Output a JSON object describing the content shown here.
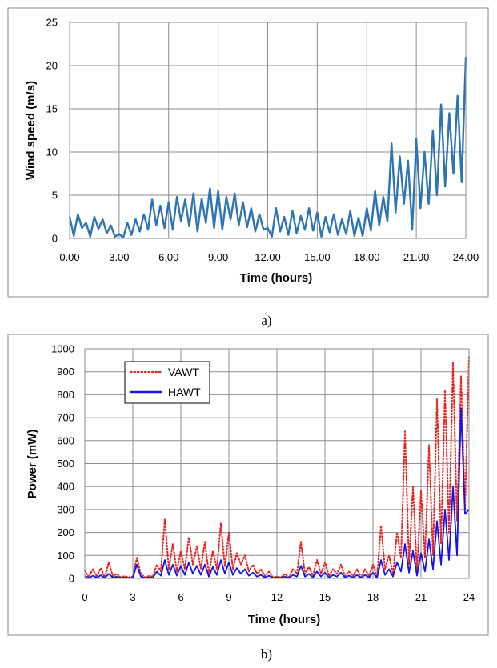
{
  "chart_data": [
    {
      "panel": "a)",
      "type": "line",
      "title": "",
      "xlabel": "Time (hours)",
      "ylabel": "Wind speed (m/s)",
      "xlim": [
        0,
        24
      ],
      "ylim": [
        0,
        25
      ],
      "xticks": [
        0,
        3,
        6,
        9,
        12,
        15,
        18,
        21,
        24
      ],
      "xtick_labels": [
        "0.00",
        "3.00",
        "6.00",
        "9.00",
        "12.00",
        "15.00",
        "18.00",
        "21.00",
        "24.00"
      ],
      "yticks": [
        0,
        5,
        10,
        15,
        20,
        25
      ],
      "ytick_labels": [
        "0",
        "5",
        "10",
        "15",
        "20",
        "25"
      ],
      "grid": true,
      "series": [
        {
          "name": "Wind speed",
          "color": "#2e74b5",
          "style": "solid",
          "x": [
            0,
            0.25,
            0.5,
            0.75,
            1,
            1.25,
            1.5,
            1.75,
            2,
            2.25,
            2.5,
            2.75,
            3,
            3.25,
            3.5,
            3.75,
            4,
            4.25,
            4.5,
            4.75,
            5,
            5.25,
            5.5,
            5.75,
            6,
            6.25,
            6.5,
            6.75,
            7,
            7.25,
            7.5,
            7.75,
            8,
            8.25,
            8.5,
            8.75,
            9,
            9.25,
            9.5,
            9.75,
            10,
            10.25,
            10.5,
            10.75,
            11,
            11.25,
            11.5,
            11.75,
            12,
            12.25,
            12.5,
            12.75,
            13,
            13.25,
            13.5,
            13.75,
            14,
            14.25,
            14.5,
            14.75,
            15,
            15.25,
            15.5,
            15.75,
            16,
            16.25,
            16.5,
            16.75,
            17,
            17.25,
            17.5,
            17.75,
            18,
            18.25,
            18.5,
            18.75,
            19,
            19.25,
            19.5,
            19.75,
            20,
            20.25,
            20.5,
            20.75,
            21,
            21.25,
            21.5,
            21.75,
            22,
            22.25,
            22.5,
            22.75,
            23,
            23.25,
            23.5,
            23.75,
            24
          ],
          "values": [
            2.5,
            0.3,
            2.8,
            1.2,
            1.8,
            0.2,
            2.5,
            1.1,
            2.2,
            0.6,
            1.5,
            0.2,
            0.5,
            0.1,
            1.8,
            0.4,
            2.2,
            0.8,
            2.8,
            1.0,
            4.5,
            1.5,
            3.8,
            1.2,
            4.2,
            1.0,
            4.8,
            2.0,
            4.5,
            1.4,
            5.2,
            0.8,
            4.6,
            1.8,
            5.8,
            1.2,
            5.5,
            1.0,
            4.8,
            2.2,
            5.2,
            1.5,
            4.2,
            1.3,
            3.5,
            0.8,
            2.8,
            1.0,
            1.2,
            0.2,
            3.5,
            0.8,
            2.5,
            0.4,
            3.2,
            0.6,
            2.6,
            1.0,
            3.5,
            0.9,
            3.0,
            0.2,
            2.5,
            0.7,
            2.8,
            0.4,
            2.2,
            0.5,
            3.2,
            0.3,
            2.4,
            0.3,
            3.5,
            0.9,
            5.5,
            1.5,
            4.8,
            2.0,
            11.0,
            3.0,
            9.5,
            4.0,
            9.0,
            1.0,
            11.5,
            3.5,
            10.0,
            4.0,
            12.5,
            5.0,
            15.5,
            6.0,
            14.5,
            7.5,
            16.5,
            6.5,
            21.0
          ]
        }
      ]
    },
    {
      "panel": "b)",
      "type": "line",
      "title": "",
      "xlabel": "Time (hours)",
      "ylabel": "Power (mW)",
      "xlim": [
        0,
        24
      ],
      "ylim": [
        0,
        1000
      ],
      "xticks": [
        0,
        3,
        6,
        9,
        12,
        15,
        18,
        21,
        24
      ],
      "xtick_labels": [
        "0",
        "3",
        "6",
        "9",
        "12",
        "15",
        "18",
        "21",
        "24"
      ],
      "yticks": [
        0,
        100,
        200,
        300,
        400,
        500,
        600,
        700,
        800,
        900,
        1000
      ],
      "ytick_labels": [
        "0",
        "100",
        "200",
        "300",
        "400",
        "500",
        "600",
        "700",
        "800",
        "900",
        "1000"
      ],
      "grid": true,
      "legend": {
        "position": "top-left"
      },
      "series": [
        {
          "name": "VAWT",
          "color": "#e8211e",
          "style": "dotted",
          "x": [
            0,
            0.25,
            0.5,
            0.75,
            1,
            1.25,
            1.5,
            1.75,
            2,
            2.25,
            2.5,
            2.75,
            3,
            3.25,
            3.5,
            3.75,
            4,
            4.25,
            4.5,
            4.75,
            5,
            5.25,
            5.5,
            5.75,
            6,
            6.25,
            6.5,
            6.75,
            7,
            7.25,
            7.5,
            7.75,
            8,
            8.25,
            8.5,
            8.75,
            9,
            9.25,
            9.5,
            9.75,
            10,
            10.25,
            10.5,
            10.75,
            11,
            11.25,
            11.5,
            11.75,
            12,
            12.25,
            12.5,
            12.75,
            13,
            13.25,
            13.5,
            13.75,
            14,
            14.25,
            14.5,
            14.75,
            15,
            15.25,
            15.5,
            15.75,
            16,
            16.25,
            16.5,
            16.75,
            17,
            17.25,
            17.5,
            17.75,
            18,
            18.25,
            18.5,
            18.75,
            19,
            19.25,
            19.5,
            19.75,
            20,
            20.25,
            20.5,
            20.75,
            21,
            21.25,
            21.5,
            21.75,
            22,
            22.25,
            22.5,
            22.75,
            23,
            23.25,
            23.5,
            23.75,
            24
          ],
          "values": [
            35,
            5,
            40,
            8,
            45,
            5,
            70,
            10,
            20,
            5,
            10,
            5,
            8,
            90,
            20,
            5,
            10,
            8,
            60,
            30,
            260,
            40,
            150,
            30,
            120,
            40,
            180,
            60,
            140,
            40,
            160,
            20,
            120,
            40,
            240,
            50,
            200,
            40,
            110,
            60,
            100,
            30,
            60,
            20,
            40,
            10,
            30,
            5,
            8,
            5,
            20,
            5,
            40,
            20,
            160,
            20,
            50,
            10,
            80,
            20,
            70,
            10,
            40,
            20,
            60,
            10,
            30,
            10,
            40,
            5,
            40,
            10,
            60,
            5,
            230,
            40,
            100,
            20,
            200,
            90,
            640,
            60,
            400,
            30,
            380,
            90,
            580,
            100,
            780,
            150,
            820,
            200,
            940,
            250,
            880,
            300,
            970
          ]
        },
        {
          "name": "HAWT",
          "color": "#1515e8",
          "style": "solid",
          "x": [
            0,
            0.25,
            0.5,
            0.75,
            1,
            1.25,
            1.5,
            1.75,
            2,
            2.25,
            2.5,
            2.75,
            3,
            3.25,
            3.5,
            3.75,
            4,
            4.25,
            4.5,
            4.75,
            5,
            5.25,
            5.5,
            5.75,
            6,
            6.25,
            6.5,
            6.75,
            7,
            7.25,
            7.5,
            7.75,
            8,
            8.25,
            8.5,
            8.75,
            9,
            9.25,
            9.5,
            9.75,
            10,
            10.25,
            10.5,
            10.75,
            11,
            11.25,
            11.5,
            11.75,
            12,
            12.25,
            12.5,
            12.75,
            13,
            13.25,
            13.5,
            13.75,
            14,
            14.25,
            14.5,
            14.75,
            15,
            15.25,
            15.5,
            15.75,
            16,
            16.25,
            16.5,
            16.75,
            17,
            17.25,
            17.5,
            17.75,
            18,
            18.25,
            18.5,
            18.75,
            19,
            19.25,
            19.5,
            19.75,
            20,
            20.25,
            20.5,
            20.75,
            21,
            21.25,
            21.5,
            21.75,
            22,
            22.25,
            22.5,
            22.75,
            23,
            23.25,
            23.5,
            23.75,
            24
          ],
          "values": [
            10,
            2,
            12,
            3,
            14,
            2,
            20,
            4,
            8,
            2,
            4,
            2,
            3,
            60,
            8,
            2,
            4,
            3,
            30,
            12,
            80,
            15,
            60,
            12,
            55,
            15,
            70,
            20,
            55,
            15,
            60,
            8,
            50,
            15,
            80,
            20,
            70,
            15,
            45,
            20,
            40,
            12,
            25,
            8,
            15,
            4,
            12,
            2,
            3,
            2,
            8,
            2,
            15,
            8,
            55,
            8,
            20,
            4,
            30,
            8,
            25,
            4,
            15,
            8,
            25,
            4,
            12,
            4,
            15,
            2,
            15,
            4,
            25,
            2,
            80,
            15,
            40,
            8,
            70,
            30,
            150,
            25,
            120,
            12,
            110,
            30,
            170,
            40,
            250,
            60,
            300,
            80,
            400,
            100,
            740,
            280,
            300
          ]
        }
      ]
    }
  ],
  "captions": {
    "a": "a)",
    "b": "b)"
  }
}
